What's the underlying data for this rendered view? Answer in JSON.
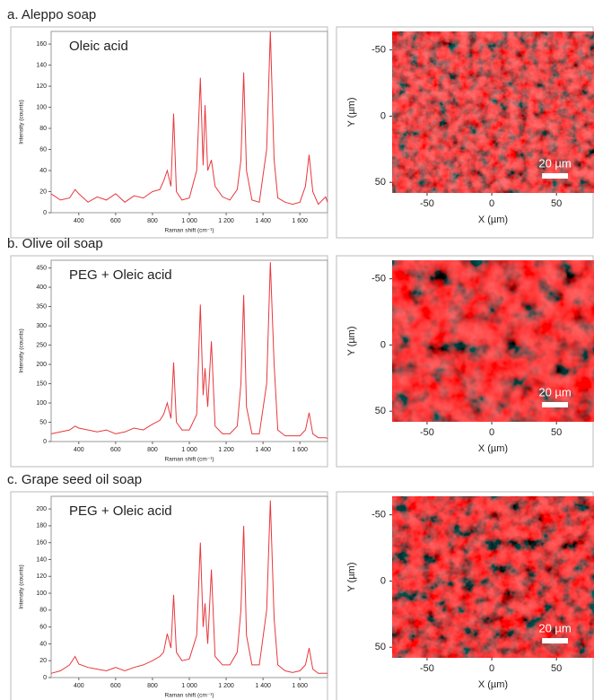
{
  "chart_data": [
    {
      "type": "line",
      "title": "a. Aleppo soap",
      "annotation": "Oleic acid",
      "xlabel": "Raman shift (cm⁻¹)",
      "ylabel": "Intensity (counts)",
      "color": "#e8383d",
      "x": [
        250,
        300,
        350,
        380,
        400,
        450,
        500,
        550,
        600,
        650,
        700,
        750,
        800,
        840,
        860,
        880,
        900,
        915,
        930,
        960,
        1000,
        1040,
        1060,
        1075,
        1085,
        1100,
        1120,
        1140,
        1180,
        1220,
        1260,
        1280,
        1295,
        1310,
        1340,
        1380,
        1420,
        1440,
        1460,
        1480,
        1520,
        1560,
        1600,
        1630,
        1650,
        1670,
        1700,
        1740,
        1750
      ],
      "values": [
        18,
        12,
        14,
        22,
        18,
        10,
        15,
        12,
        18,
        10,
        16,
        14,
        20,
        22,
        30,
        40,
        25,
        94,
        20,
        12,
        14,
        40,
        128,
        45,
        102,
        40,
        50,
        25,
        15,
        12,
        22,
        50,
        133,
        40,
        12,
        10,
        60,
        172,
        50,
        14,
        10,
        8,
        10,
        25,
        55,
        20,
        8,
        15,
        10
      ],
      "xlim": [
        250,
        1750
      ],
      "xticks": [
        400,
        600,
        800,
        {
          "value": 1000,
          "label": "1 000"
        },
        {
          "value": 1200,
          "label": "1 200"
        },
        {
          "value": 1400,
          "label": "1 400"
        },
        {
          "value": 1600,
          "label": "1 600"
        }
      ],
      "ylim": [
        0,
        172
      ],
      "yticks": [
        0,
        20,
        40,
        60,
        80,
        100,
        120,
        140,
        160
      ]
    },
    {
      "type": "map",
      "xlabel": "X (µm)",
      "ylabel": "Y (µm)",
      "xlim": [
        -77,
        79
      ],
      "ylim": [
        -64,
        58
      ],
      "xticks": [
        -50,
        0,
        50
      ],
      "yticks": [
        -50,
        0,
        50
      ],
      "y_inverted": true,
      "scale_bar": {
        "label": "20 µm",
        "length": 20
      }
    },
    {
      "type": "line",
      "title": "b. Olive oil soap",
      "annotation": "PEG + Oleic acid",
      "xlabel": "Raman shift (cm⁻¹)",
      "ylabel": "Intensity (counts)",
      "color": "#e8383d",
      "x": [
        250,
        300,
        350,
        380,
        400,
        450,
        500,
        550,
        600,
        650,
        700,
        750,
        800,
        840,
        860,
        880,
        900,
        915,
        930,
        960,
        1000,
        1040,
        1060,
        1075,
        1085,
        1100,
        1120,
        1140,
        1180,
        1220,
        1260,
        1280,
        1295,
        1310,
        1340,
        1380,
        1420,
        1440,
        1460,
        1480,
        1520,
        1560,
        1600,
        1630,
        1650,
        1670,
        1700,
        1740,
        1750
      ],
      "values": [
        20,
        25,
        30,
        40,
        35,
        30,
        25,
        30,
        20,
        25,
        35,
        30,
        45,
        55,
        70,
        100,
        60,
        205,
        50,
        30,
        30,
        70,
        355,
        120,
        190,
        90,
        260,
        40,
        20,
        20,
        40,
        150,
        380,
        90,
        20,
        20,
        150,
        465,
        200,
        30,
        15,
        15,
        15,
        30,
        75,
        20,
        10,
        10,
        8
      ],
      "xlim": [
        250,
        1750
      ],
      "xticks": [
        400,
        600,
        800,
        {
          "value": 1000,
          "label": "1 000"
        },
        {
          "value": 1200,
          "label": "1 200"
        },
        {
          "value": 1400,
          "label": "1 400"
        },
        {
          "value": 1600,
          "label": "1 600"
        }
      ],
      "ylim": [
        0,
        470
      ],
      "yticks": [
        0,
        50,
        100,
        150,
        200,
        250,
        300,
        350,
        400,
        450
      ]
    },
    {
      "type": "map",
      "xlabel": "X (µm)",
      "ylabel": "Y (µm)",
      "xlim": [
        -77,
        79
      ],
      "ylim": [
        -64,
        58
      ],
      "xticks": [
        -50,
        0,
        50
      ],
      "yticks": [
        -50,
        0,
        50
      ],
      "y_inverted": true,
      "scale_bar": {
        "label": "20 µm",
        "length": 20
      }
    },
    {
      "type": "line",
      "title": "c.  Grape seed oil soap",
      "annotation": "PEG + Oleic acid",
      "xlabel": "Raman shift (cm⁻¹)",
      "ylabel": "Intensity (counts)",
      "color": "#e8383d",
      "x": [
        250,
        300,
        350,
        380,
        400,
        450,
        500,
        550,
        600,
        650,
        700,
        750,
        800,
        840,
        860,
        880,
        900,
        915,
        930,
        960,
        1000,
        1040,
        1060,
        1075,
        1085,
        1100,
        1120,
        1140,
        1180,
        1220,
        1260,
        1280,
        1295,
        1310,
        1340,
        1380,
        1420,
        1440,
        1460,
        1480,
        1520,
        1560,
        1600,
        1630,
        1650,
        1670,
        1700,
        1740,
        1750
      ],
      "values": [
        5,
        8,
        15,
        25,
        16,
        12,
        10,
        8,
        12,
        8,
        12,
        15,
        20,
        25,
        30,
        52,
        35,
        98,
        30,
        20,
        22,
        50,
        160,
        60,
        88,
        40,
        128,
        25,
        15,
        15,
        30,
        80,
        180,
        50,
        15,
        15,
        80,
        210,
        70,
        15,
        8,
        6,
        8,
        15,
        35,
        10,
        5,
        5,
        5
      ],
      "xlim": [
        250,
        1750
      ],
      "xticks": [
        400,
        600,
        800,
        {
          "value": 1000,
          "label": "1 000"
        },
        {
          "value": 1200,
          "label": "1 200"
        },
        {
          "value": 1400,
          "label": "1 400"
        },
        {
          "value": 1600,
          "label": "1 600"
        }
      ],
      "ylim": [
        0,
        215
      ],
      "yticks": [
        0,
        20,
        40,
        60,
        80,
        100,
        120,
        140,
        160,
        180,
        200
      ]
    },
    {
      "type": "map",
      "xlabel": "X (µm)",
      "ylabel": "Y (µm)",
      "xlim": [
        -77,
        79
      ],
      "ylim": [
        -64,
        58
      ],
      "xticks": [
        -50,
        0,
        50
      ],
      "yticks": [
        -50,
        0,
        50
      ],
      "y_inverted": true,
      "scale_bar": {
        "label": "20 µm",
        "length": 20
      }
    }
  ]
}
